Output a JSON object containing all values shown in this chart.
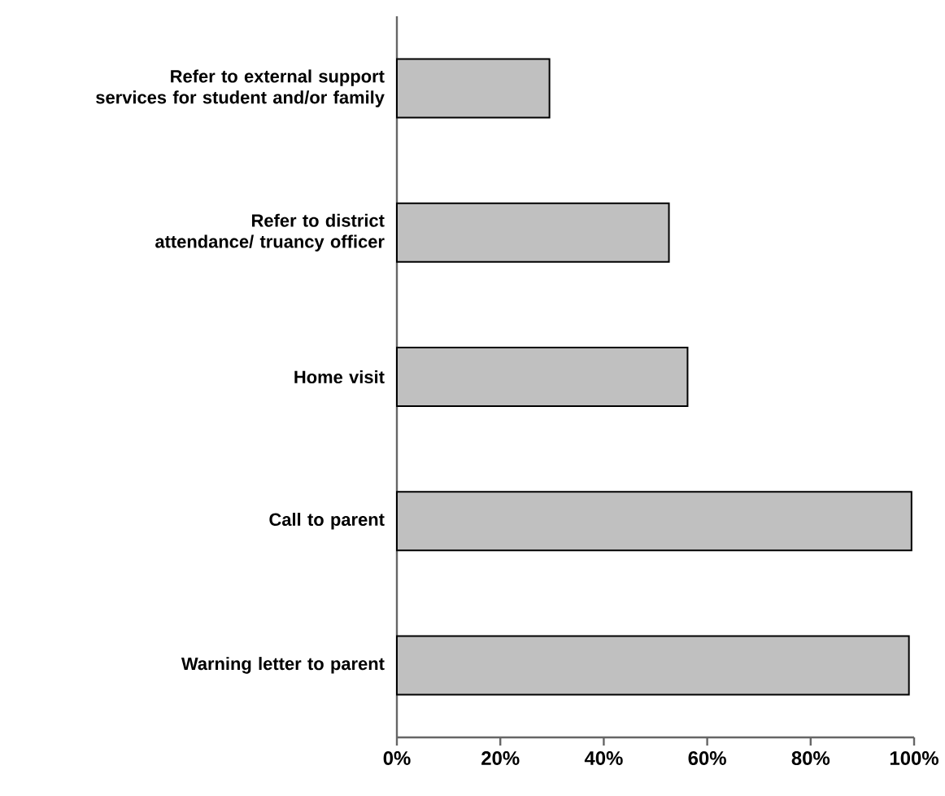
{
  "chart_data": {
    "type": "bar",
    "orientation": "horizontal",
    "categories": [
      "Refer to external support services for student and/or family",
      "Refer to district attendance/ truancy officer",
      "Home visit",
      "Call to parent",
      "Warning letter to parent"
    ],
    "values": [
      29.5,
      52.6,
      56.2,
      99.5,
      99
    ],
    "color": "#c0c0c0",
    "xlim": [
      0,
      100
    ],
    "xticks": [
      {
        "value": 0,
        "label": "0%"
      },
      {
        "value": 20,
        "label": "20%"
      },
      {
        "value": 40,
        "label": "40%"
      },
      {
        "value": 60,
        "label": "60%"
      },
      {
        "value": 80,
        "label": "80%"
      },
      {
        "value": 100,
        "label": "100%"
      }
    ],
    "tick_labels": "xy"
  }
}
